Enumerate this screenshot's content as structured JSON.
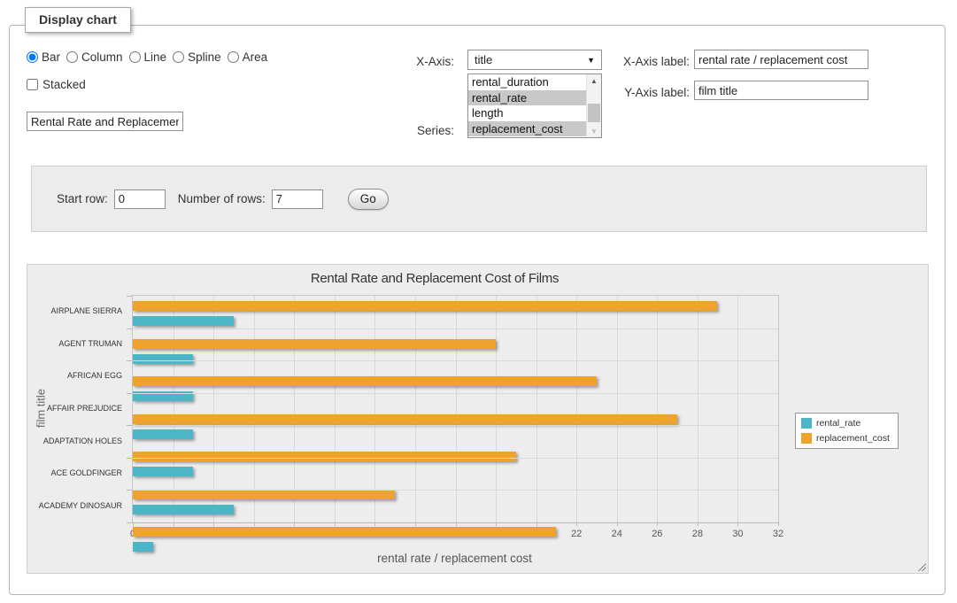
{
  "panel": {
    "tab_label": "Display chart"
  },
  "chart_type": {
    "options": [
      {
        "label": "Bar",
        "checked": true
      },
      {
        "label": "Column",
        "checked": false
      },
      {
        "label": "Line",
        "checked": false
      },
      {
        "label": "Spline",
        "checked": false
      },
      {
        "label": "Area",
        "checked": false
      }
    ]
  },
  "stacked": {
    "label": "Stacked",
    "checked": false
  },
  "title_input": {
    "value": "Rental Rate and Replacement Cost of Films"
  },
  "x_axis_select": {
    "label": "X-Axis:",
    "selected": "title"
  },
  "series_select": {
    "label": "Series:",
    "options": [
      "rental_duration",
      "rental_rate",
      "length",
      "replacement_cost"
    ],
    "selected": [
      "rental_rate",
      "replacement_cost"
    ]
  },
  "x_axis_label_field": {
    "label": "X-Axis label:",
    "value": "rental rate / replacement cost"
  },
  "y_axis_label_field": {
    "label": "Y-Axis label:",
    "value": "film title"
  },
  "rows_panel": {
    "start_row_label": "Start row:",
    "start_row_value": "0",
    "num_rows_label": "Number of rows:",
    "num_rows_value": "7",
    "go_label": "Go"
  },
  "chart_data": {
    "type": "bar",
    "title": "Rental Rate and Replacement Cost of Films",
    "categories": [
      "AIRPLANE SIERRA",
      "AGENT TRUMAN",
      "AFRICAN EGG",
      "AFFAIR PREJUDICE",
      "ADAPTATION HOLES",
      "ACE GOLDFINGER",
      "ACADEMY DINOSAUR"
    ],
    "series": [
      {
        "name": "rental_rate",
        "color": "#4db6c6",
        "values": [
          4.99,
          2.99,
          2.99,
          2.99,
          2.99,
          4.99,
          0.99
        ]
      },
      {
        "name": "replacement_cost",
        "color": "#eea42c",
        "values": [
          28.99,
          17.99,
          22.99,
          26.99,
          18.99,
          12.99,
          20.99
        ]
      }
    ],
    "xlabel": "rental rate / replacement cost",
    "ylabel": "film title",
    "xlim": [
      0,
      32
    ],
    "xtick_step": 2,
    "grid": true,
    "legend_position": "right"
  }
}
